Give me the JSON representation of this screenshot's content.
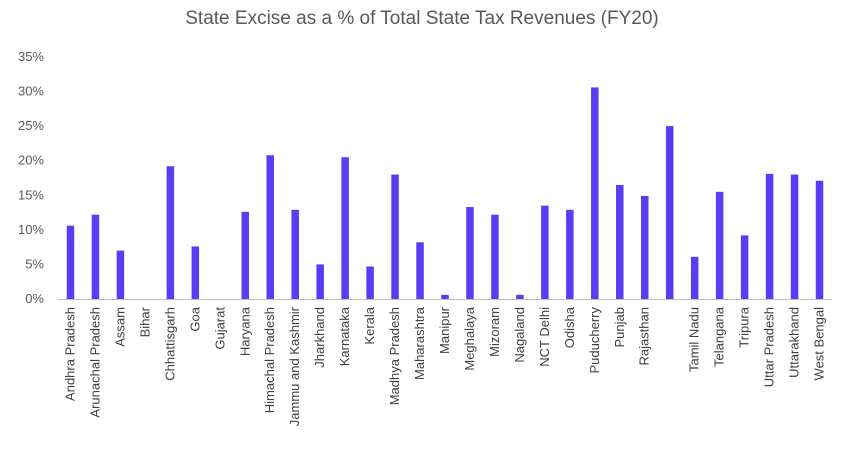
{
  "chart_data": {
    "type": "bar",
    "title": "State Excise as a % of Total State Tax Revenues (FY20)",
    "xlabel": "",
    "ylabel": "",
    "ylim": [
      0,
      35
    ],
    "yticks": [
      "0%",
      "5%",
      "10%",
      "15%",
      "20%",
      "25%",
      "30%",
      "35%"
    ],
    "grid": false,
    "legend": "none",
    "bar_color": "#5B3CF5",
    "categories": [
      "Andhra Pradesh",
      "Arunachal Pradesh",
      "Assam",
      "Bihar",
      "Chhattisgarh",
      "Goa",
      "Gujarat",
      "Haryana",
      "Himachal Pradesh",
      "Jammu and Kashmir",
      "Jharkhand",
      "Karnataka",
      "Kerala",
      "Madhya Pradesh",
      "Maharashtra",
      "Manipur",
      "Meghalaya",
      "Mizoram",
      "Nagaland",
      "NCT Delhi",
      "Odisha",
      "Puducherry",
      "Punjab",
      "Rajasthan",
      "",
      "Tamil Nadu",
      "Telangana",
      "Tripura",
      "Uttar Pradesh",
      "Uttarakhand",
      "West Bengal"
    ],
    "values": [
      10.6,
      12.2,
      7.0,
      0,
      19.2,
      7.6,
      0,
      12.6,
      20.8,
      12.9,
      5.0,
      20.5,
      4.7,
      18.0,
      8.2,
      0.6,
      13.3,
      12.2,
      0.6,
      13.5,
      12.9,
      30.6,
      16.5,
      14.9,
      25.0,
      6.1,
      15.5,
      9.2,
      18.1,
      18.0,
      17.1
    ]
  }
}
